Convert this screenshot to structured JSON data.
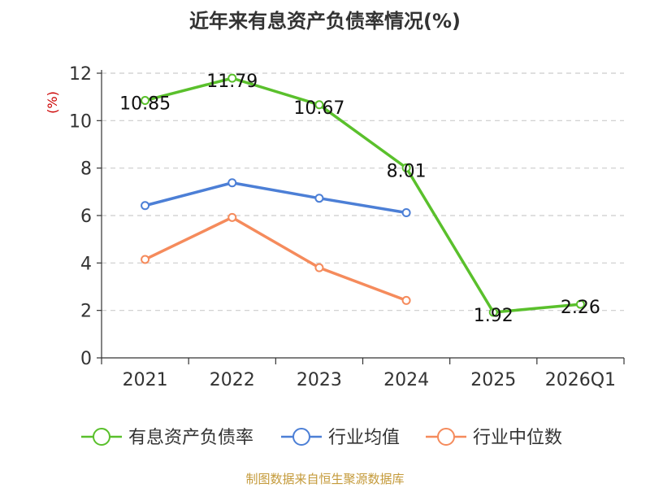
{
  "chart_data": {
    "type": "line",
    "title": "近年来有息资产负债率情况(%)",
    "ylabel": "(%)",
    "xlabel": "",
    "categories": [
      "2021",
      "2022",
      "2023",
      "2024",
      "2025",
      "2026Q1"
    ],
    "ylim": [
      0,
      12
    ],
    "yticks": [
      0,
      2,
      4,
      6,
      8,
      10,
      12
    ],
    "grid": true,
    "legend_position": "bottom",
    "series": [
      {
        "name": "有息资产负债率",
        "color": "#5ac02c",
        "values": [
          10.85,
          11.79,
          10.67,
          8.01,
          1.92,
          2.26
        ],
        "labels": [
          "10.85",
          "11.79",
          "10.67",
          "8.01",
          "1.92",
          "2.26"
        ]
      },
      {
        "name": "行业均值",
        "color": "#4c7fd6",
        "values": [
          6.42,
          7.38,
          6.73,
          6.12,
          null,
          null
        ]
      },
      {
        "name": "行业中位数",
        "color": "#f58b5c",
        "values": [
          4.15,
          5.92,
          3.8,
          2.42,
          null,
          null
        ]
      }
    ]
  },
  "source": "制图数据来自恒生聚源数据库"
}
